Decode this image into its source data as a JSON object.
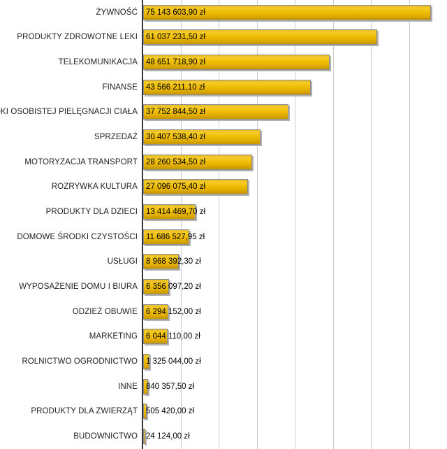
{
  "chart_data": {
    "type": "bar",
    "orientation": "horizontal",
    "title": "",
    "xlabel": "",
    "ylabel": "",
    "xlim": [
      0,
      80000000
    ],
    "gridline_interval": 10000000,
    "grid": "vertical-only",
    "legend": "none",
    "currency_suffix": "zł",
    "categories": [
      "ŻYWNOŚĆ",
      "PRODUKTY ZDROWOTNE LEKI",
      "TELEKOMUNIKACJA",
      "FINANSE",
      "ŚRODKI OSOBISTEJ PIELĘGNACJI CIAŁA",
      "SPRZEDAŻ",
      "MOTORYZACJA TRANSPORT",
      "ROZRYWKA KULTURA",
      "PRODUKTY DLA DZIECI",
      "DOMOWE ŚRODKI CZYSTOŚCI",
      "USŁUGI",
      "WYPOSAŻENIE DOMU I BIURA",
      "ODZIEŻ OBUWIE",
      "MARKETING",
      "ROLNICTWO OGRODNICTWO",
      "INNE",
      "PRODUKTY DLA ZWIERZĄT",
      "BUDOWNICTWO"
    ],
    "values": [
      75143603.9,
      61037231.5,
      48651718.9,
      43566211.1,
      37752844.5,
      30407538.4,
      28260534.5,
      27096075.4,
      13414469.7,
      11686527.95,
      8968392.3,
      6356097.2,
      6294152.0,
      6044110.0,
      1325044.0,
      840357.5,
      505420.0,
      24124.0
    ],
    "value_labels": [
      "75 143 603,90 zł",
      "61 037 231,50 zł",
      "48 651 718,90 zł",
      "43 566 211,10 zł",
      "37 752 844,50 zł",
      "30 407 538,40 zł",
      "28 260 534,50 zł",
      "27 096 075,40 zł",
      "13 414 469,70 zł",
      "11 686 527,95 zł",
      "8 968 392,30 zł",
      "6 356 097,20 zł",
      "6 294 152,00 zł",
      "6 044 110,00 zł",
      "1 325 044,00 zł",
      "840 357,50 zł",
      "505 420,00 zł",
      "24 124,00 zł"
    ],
    "colors": {
      "background": "#ffffff",
      "bar_fill_light": "#f5cb28",
      "bar_fill_dark": "#c69700",
      "bar_border": "#8d8d8d",
      "bar_shadow": "#b2b2b2",
      "gridline": "#cccccc",
      "axis": "#333333",
      "label_text": "#222222",
      "value_text": "#000000"
    }
  }
}
